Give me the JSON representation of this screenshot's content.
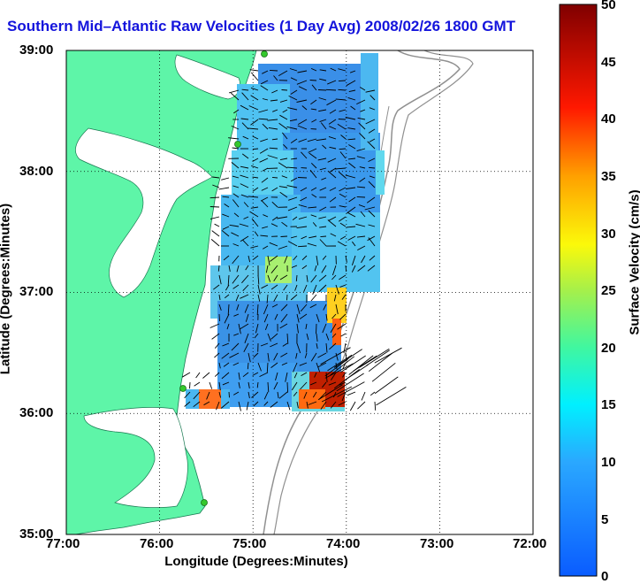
{
  "title": "Southern Mid–Atlantic Raw Velocities (1 Day Avg) 2008/02/26 1800 GMT",
  "axes": {
    "xlabel": "Longitude (Degrees:Minutes)",
    "ylabel": "Latitude (Degrees:Minutes)",
    "xticks": [
      "77:00",
      "76:00",
      "75:00",
      "74:00",
      "73:00",
      "72:00"
    ],
    "yticks": [
      "39:00",
      "38:00",
      "37:00",
      "36:00",
      "35:00"
    ]
  },
  "colorbar": {
    "label": "Surface Velocity (cm/s)",
    "min": 0,
    "max": 50,
    "ticks": [
      "50",
      "45",
      "40",
      "35",
      "30",
      "25",
      "20",
      "15",
      "10",
      "5",
      "0"
    ]
  },
  "map": {
    "extent_lon": [
      -77,
      -72
    ],
    "extent_lat": [
      35,
      39
    ],
    "land_color": "#5ef5a8",
    "stations": [
      {
        "lon": -74.88,
        "lat": 38.99
      },
      {
        "lon": -75.16,
        "lat": 38.24
      },
      {
        "lon": -75.75,
        "lat": 36.2
      },
      {
        "lon": -75.52,
        "lat": 35.26
      }
    ]
  },
  "colors": {
    "title": "#1414dc",
    "grid": "#000000",
    "bathymetry": "#909090",
    "station": "#34c82c"
  }
}
